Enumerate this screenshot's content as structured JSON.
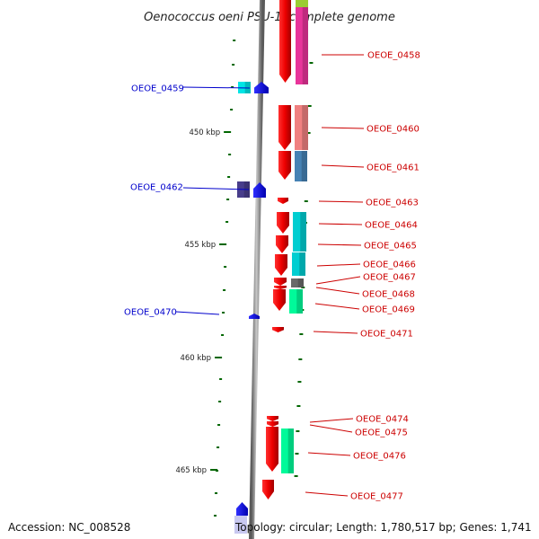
{
  "title": "Oenococcus oeni PSU-1, complete genome",
  "accession": "Accession: NC_008528",
  "topology": "Topology: circular; Length: 1,780,517 bp; Genes: 1,741",
  "scale_labels": [
    "450 kbp",
    "455 kbp",
    "460 kbp",
    "465 kbp"
  ],
  "colors": {
    "forward_label": "#cc0000",
    "reverse_label": "#0000cc",
    "forward_gene": "#ff0000",
    "reverse_gene": "#0000ff",
    "backbone": "#888888",
    "tick": "#006600"
  },
  "genes": [
    {
      "id": "OEOE_0458",
      "strand": "forward",
      "cog_color": "#e8349a"
    },
    {
      "id": "OEOE_0459",
      "strand": "reverse",
      "cog_color": "#00e5e5"
    },
    {
      "id": "OEOE_0460",
      "strand": "forward",
      "cog_color": "#f08080"
    },
    {
      "id": "OEOE_0461",
      "strand": "forward",
      "cog_color": "#4682b4"
    },
    {
      "id": "OEOE_0462",
      "strand": "reverse",
      "cog_color": "#483d8b"
    },
    {
      "id": "OEOE_0463",
      "strand": "forward",
      "cog_color": ""
    },
    {
      "id": "OEOE_0464",
      "strand": "forward",
      "cog_color": "#00ced1"
    },
    {
      "id": "OEOE_0465",
      "strand": "forward",
      "cog_color": "#00ced1"
    },
    {
      "id": "OEOE_0466",
      "strand": "forward",
      "cog_color": "#00ced1"
    },
    {
      "id": "OEOE_0467",
      "strand": "forward",
      "cog_color": "#696969"
    },
    {
      "id": "OEOE_0468",
      "strand": "forward",
      "cog_color": ""
    },
    {
      "id": "OEOE_0469",
      "strand": "forward",
      "cog_color": "#00fa9a"
    },
    {
      "id": "OEOE_0470",
      "strand": "reverse",
      "cog_color": ""
    },
    {
      "id": "OEOE_0471",
      "strand": "forward",
      "cog_color": ""
    },
    {
      "id": "OEOE_0474",
      "strand": "forward",
      "cog_color": ""
    },
    {
      "id": "OEOE_0475",
      "strand": "forward",
      "cog_color": ""
    },
    {
      "id": "OEOE_0476",
      "strand": "forward",
      "cog_color": "#00fa9a"
    },
    {
      "id": "OEOE_0477",
      "strand": "forward",
      "cog_color": ""
    }
  ]
}
